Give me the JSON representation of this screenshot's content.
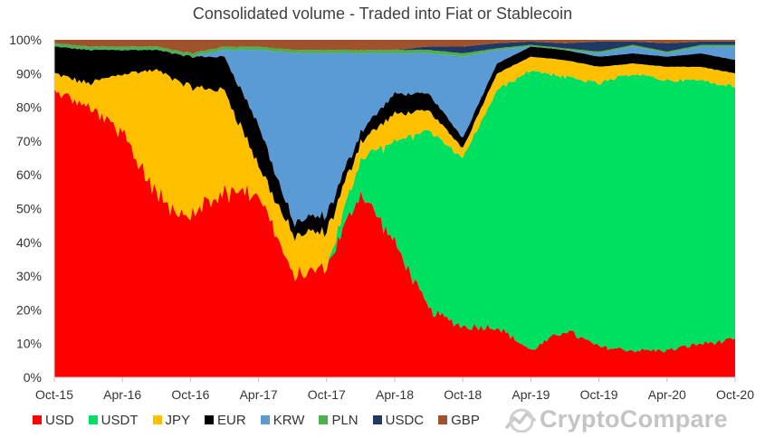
{
  "chart_data": {
    "type": "area",
    "stacked": true,
    "normalized": true,
    "title": "Consolidated volume - Traded into Fiat or Stablecoin",
    "xlabel": "",
    "ylabel": "",
    "ylim": [
      0,
      100
    ],
    "x_range": [
      "2015-10",
      "2020-10"
    ],
    "y_ticks": [
      "0%",
      "10%",
      "20%",
      "30%",
      "40%",
      "50%",
      "60%",
      "70%",
      "80%",
      "90%",
      "100%"
    ],
    "x_ticks": [
      "Oct-15",
      "Apr-16",
      "Oct-16",
      "Apr-17",
      "Oct-17",
      "Apr-18",
      "Oct-18",
      "Apr-19",
      "Oct-19",
      "Apr-20",
      "Oct-20"
    ],
    "legend_position": "bottom-left",
    "grid": false,
    "x": [
      "2015-10",
      "2016-01",
      "2016-04",
      "2016-07",
      "2016-10",
      "2017-01",
      "2017-04",
      "2017-07",
      "2017-10",
      "2018-01",
      "2018-04",
      "2018-07",
      "2018-10",
      "2019-01",
      "2019-04",
      "2019-07",
      "2019-10",
      "2020-01",
      "2020-04",
      "2020-07",
      "2020-10"
    ],
    "series": [
      {
        "name": "USD",
        "color": "#ff0000",
        "values": [
          85,
          80,
          72,
          55,
          48,
          55,
          55,
          30,
          33,
          55,
          40,
          20,
          15,
          15,
          8,
          14,
          9,
          8,
          8,
          10,
          11
        ]
      },
      {
        "name": "USDT",
        "color": "#00e060",
        "values": [
          0,
          0,
          0,
          0,
          0,
          0,
          0,
          0,
          0,
          10,
          30,
          53,
          50,
          70,
          83,
          75,
          78,
          82,
          80,
          78,
          75
        ]
      },
      {
        "name": "JPY",
        "color": "#ffc000",
        "values": [
          5,
          7,
          18,
          36,
          38,
          30,
          8,
          12,
          10,
          5,
          8,
          6,
          3,
          5,
          4,
          5,
          5,
          3,
          4,
          4,
          4
        ]
      },
      {
        "name": "EUR",
        "color": "#000000",
        "values": [
          8,
          10,
          7,
          6,
          9,
          10,
          12,
          4,
          5,
          3,
          6,
          5,
          3,
          3,
          3,
          3,
          3,
          3,
          3,
          4,
          4
        ]
      },
      {
        "name": "KRW",
        "color": "#5b9bd5",
        "values": [
          0,
          0,
          0,
          0,
          0,
          2,
          22,
          50,
          48,
          23,
          12,
          12,
          24,
          4,
          0,
          0,
          1,
          2,
          1,
          2,
          4
        ]
      },
      {
        "name": "PLN",
        "color": "#4caf50",
        "values": [
          1,
          1,
          1,
          1,
          1,
          1,
          1,
          1,
          1,
          1,
          1,
          1,
          1,
          0.5,
          0.5,
          0.5,
          0.5,
          0.5,
          0.5,
          0.5,
          0.5
        ]
      },
      {
        "name": "USDC",
        "color": "#1f3864",
        "values": [
          0,
          0,
          0,
          0,
          0,
          0,
          0,
          0,
          0,
          0,
          0,
          1,
          2,
          1.5,
          1,
          1.5,
          3,
          1,
          2.5,
          1,
          1
        ]
      },
      {
        "name": "GBP",
        "color": "#a0522d",
        "values": [
          1,
          2,
          2,
          2,
          4,
          2,
          2,
          3,
          3,
          3,
          3,
          2,
          2,
          1,
          0.5,
          1,
          0.5,
          0.5,
          1,
          0.5,
          0.5
        ]
      }
    ]
  },
  "watermark": {
    "text": "CryptoCompare",
    "icon": "cryptocompare-logo-icon"
  }
}
